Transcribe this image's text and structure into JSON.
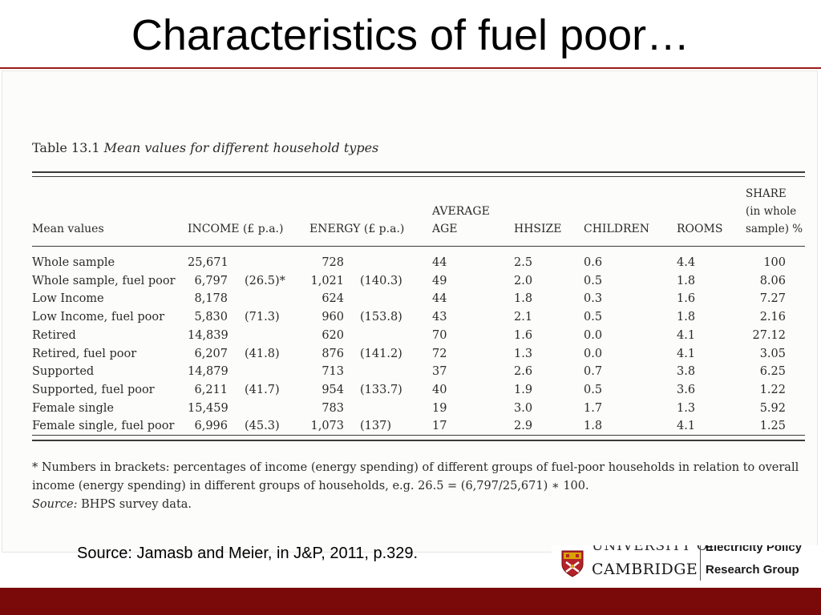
{
  "slide": {
    "title": "Characteristics of fuel poor…",
    "source": "Source: Jamasb and Meier, in J&P, 2011, p.329."
  },
  "table": {
    "caption_number": "Table 13.1",
    "caption_text": "Mean values for different household types",
    "headers": {
      "mean_values": "Mean values",
      "income": "INCOME (£ p.a.)",
      "energy": "ENERGY (£ p.a.)",
      "avg_age_1": "AVERAGE",
      "avg_age_2": "AGE",
      "hhsize": "HHSIZE",
      "children": "CHILDREN",
      "rooms": "ROOMS",
      "share_1": "SHARE",
      "share_2": "(in whole",
      "share_3": "sample) %"
    },
    "rows": [
      {
        "label": "Whole sample",
        "income": "25,671",
        "income_pct": "",
        "energy": "728",
        "energy_pct": "",
        "age": "44",
        "hhsize": "2.5",
        "children": "0.6",
        "rooms": "4.4",
        "share": "100"
      },
      {
        "label": "Whole sample, fuel poor",
        "income": "6,797",
        "income_pct": "(26.5)*",
        "energy": "1,021",
        "energy_pct": "(140.3)",
        "age": "49",
        "hhsize": "2.0",
        "children": "0.5",
        "rooms": "1.8",
        "share": "8.06"
      },
      {
        "label": "Low Income",
        "income": "8,178",
        "income_pct": "",
        "energy": "624",
        "energy_pct": "",
        "age": "44",
        "hhsize": "1.8",
        "children": "0.3",
        "rooms": "1.6",
        "share": "7.27"
      },
      {
        "label": "Low Income, fuel poor",
        "income": "5,830",
        "income_pct": "(71.3)",
        "energy": "960",
        "energy_pct": "(153.8)",
        "age": "43",
        "hhsize": "2.1",
        "children": "0.5",
        "rooms": "1.8",
        "share": "2.16"
      },
      {
        "label": "Retired",
        "income": "14,839",
        "income_pct": "",
        "energy": "620",
        "energy_pct": "",
        "age": "70",
        "hhsize": "1.6",
        "children": "0.0",
        "rooms": "4.1",
        "share": "27.12"
      },
      {
        "label": "Retired, fuel poor",
        "income": "6,207",
        "income_pct": "(41.8)",
        "energy": "876",
        "energy_pct": "(141.2)",
        "age": "72",
        "hhsize": "1.3",
        "children": "0.0",
        "rooms": "4.1",
        "share": "3.05"
      },
      {
        "label": "Supported",
        "income": "14,879",
        "income_pct": "",
        "energy": "713",
        "energy_pct": "",
        "age": "37",
        "hhsize": "2.6",
        "children": "0.7",
        "rooms": "3.8",
        "share": "6.25"
      },
      {
        "label": "Supported, fuel poor",
        "income": "6,211",
        "income_pct": "(41.7)",
        "energy": "954",
        "energy_pct": "(133.7)",
        "age": "40",
        "hhsize": "1.9",
        "children": "0.5",
        "rooms": "3.6",
        "share": "1.22"
      },
      {
        "label": "Female single",
        "income": "15,459",
        "income_pct": "",
        "energy": "783",
        "energy_pct": "",
        "age": "19",
        "hhsize": "3.0",
        "children": "1.7",
        "rooms": "1.3",
        "share": "5.92"
      },
      {
        "label": "Female single, fuel poor",
        "income": "6,996",
        "income_pct": "(45.3)",
        "energy": "1,073",
        "energy_pct": "(137)",
        "age": "17",
        "hhsize": "2.9",
        "children": "1.8",
        "rooms": "4.1",
        "share": "1.25"
      }
    ],
    "footnote_line1": "* Numbers in brackets: percentages of income (energy spending) of different groups of fuel-poor households in relation to overall income (energy spending) in different groups of households, e.g. 26.5 = (6,797/25,671) ∗ 100.",
    "source_label": "Source:",
    "source_text": " BHPS survey data."
  },
  "logo": {
    "university_top": "UNIVERSITY OF",
    "university_name": "CAMBRIDGE",
    "group_top": "Electricity Policy",
    "group_name": "Research Group"
  },
  "colors": {
    "accent": "#7a0a0a",
    "title_rule": "#9b1b1b",
    "shield_red": "#b4232a",
    "shield_gold": "#d9a300"
  }
}
